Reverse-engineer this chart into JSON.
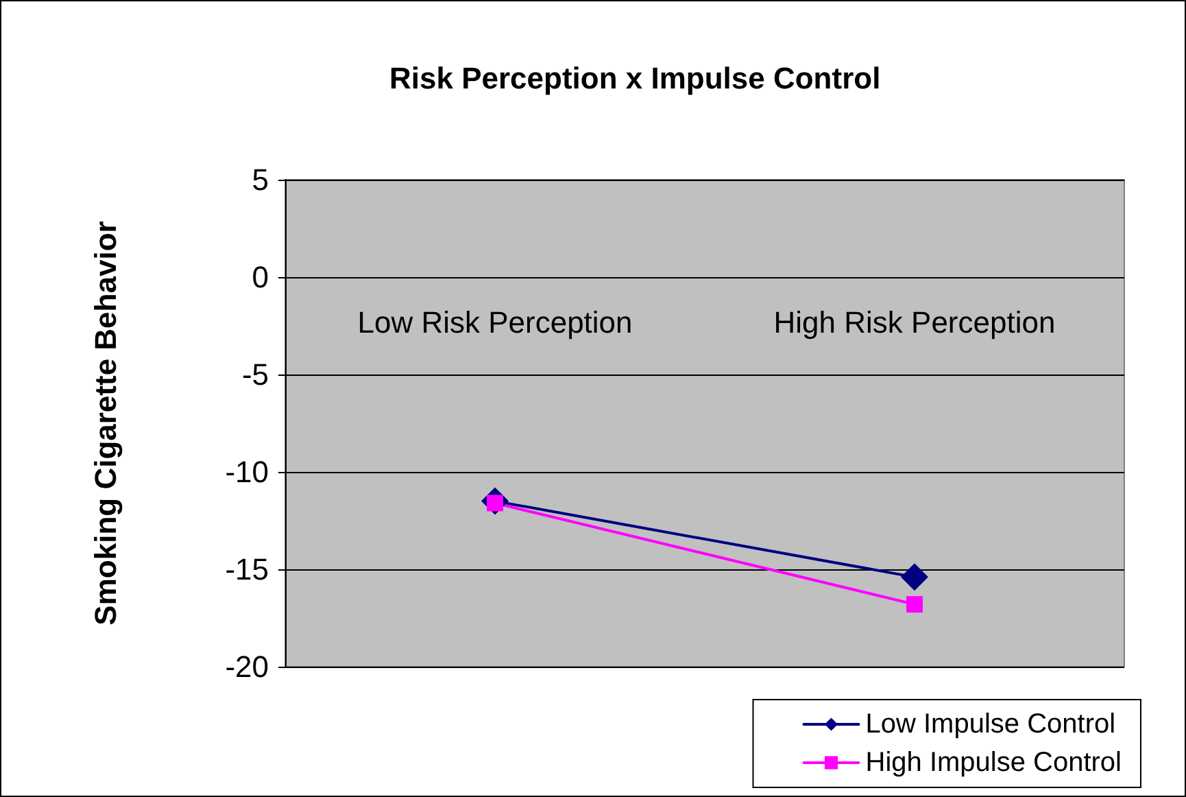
{
  "chart_data": {
    "type": "line",
    "title": "Risk Perception x Impulse Control",
    "ylabel": "Smoking Cigarette Behavior",
    "categories": [
      "Low Risk Perception",
      "High Risk Perception"
    ],
    "series": [
      {
        "name": "Low Impulse Control",
        "color": "#000080",
        "values": [
          -11.5,
          -15.4
        ],
        "marker": "diamond"
      },
      {
        "name": "High Impulse Control",
        "color": "#ff00ff",
        "values": [
          -11.6,
          -16.8
        ],
        "marker": "square"
      }
    ],
    "ylim": [
      -20,
      5
    ],
    "yticks": [
      -20,
      -15,
      -10,
      -5,
      0,
      5
    ],
    "grid": "y",
    "legend": "bottom right",
    "line_style": "solid"
  }
}
